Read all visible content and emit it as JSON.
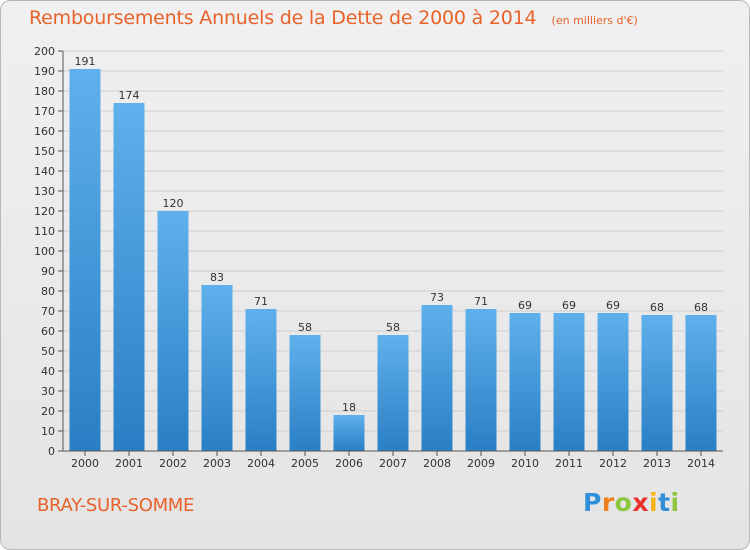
{
  "title": "Remboursements Annuels de la Dette de 2000 à 2014",
  "unit": "(en milliers d'€)",
  "city": "BRAY-SUR-SOMME",
  "brand": {
    "letters": [
      "P",
      "r",
      "o",
      "x",
      "i",
      "t",
      "i"
    ],
    "colors": [
      "#2f8fd8",
      "#f07d1e",
      "#8cc63e",
      "#e8342e",
      "#f5b416",
      "#2f8fd8",
      "#8cc63e"
    ]
  },
  "colors": {
    "bar_light": "#5fb0ec",
    "bar_dark": "#2a7fc4",
    "accent": "#e8622a",
    "grid": "#cfcfcf"
  },
  "chart_data": {
    "type": "bar",
    "categories": [
      "2000",
      "2001",
      "2002",
      "2003",
      "2004",
      "2005",
      "2006",
      "2007",
      "2008",
      "2009",
      "2010",
      "2011",
      "2012",
      "2013",
      "2014"
    ],
    "values": [
      191,
      174,
      120,
      83,
      71,
      58,
      18,
      58,
      73,
      71,
      69,
      69,
      69,
      68,
      68
    ],
    "ylim": [
      0,
      200
    ],
    "ytick_step": 10,
    "grid": true,
    "data_labels": true
  }
}
